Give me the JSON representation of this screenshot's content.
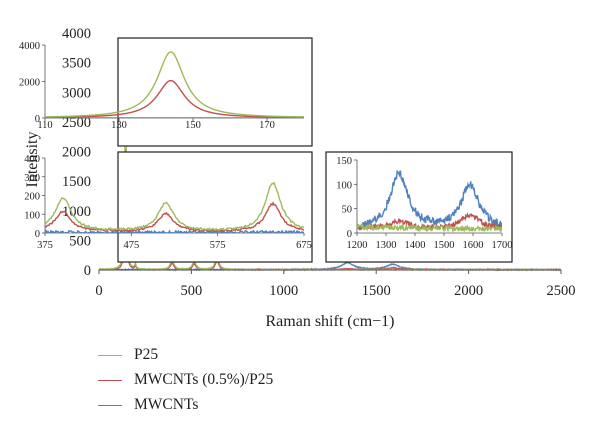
{
  "chart_data": {
    "type": "line",
    "xlabel": "Raman shift (cm−1)",
    "ylabel": "Intensity",
    "xlim": [
      0,
      2500
    ],
    "ylim": [
      0,
      4000
    ],
    "x_ticks": [
      "0",
      "500",
      "1000",
      "1500",
      "2000",
      "2500"
    ],
    "y_ticks": [
      "0",
      "500",
      "1000",
      "1500",
      "2000",
      "2500",
      "3000",
      "3500",
      "4000"
    ],
    "grid": false,
    "legend_position": "bottom-left",
    "series": [
      {
        "name": "P25",
        "color": "#9bbb59",
        "peaks": [
          [
            144,
            3620
          ],
          [
            197,
            90
          ],
          [
            396,
            175
          ],
          [
            515,
            150
          ],
          [
            639,
            260
          ]
        ]
      },
      {
        "name": "MWCNTs (0.5%)/P25",
        "color": "#c0504d",
        "peaks": [
          [
            144,
            2050
          ],
          [
            197,
            55
          ],
          [
            396,
            105
          ],
          [
            515,
            95
          ],
          [
            639,
            150
          ],
          [
            1345,
            15
          ],
          [
            1590,
            30
          ]
        ]
      },
      {
        "name": "MWCNTs",
        "color": "#4f81bd",
        "peaks": [
          [
            1345,
            115
          ],
          [
            1590,
            90
          ]
        ]
      }
    ],
    "insets": [
      {
        "xlim": [
          110,
          180
        ],
        "ylim": [
          0,
          4000
        ],
        "x_ticks": [
          "110",
          "130",
          "150",
          "170"
        ],
        "y_ticks": [
          "0",
          "2000",
          "4000"
        ]
      },
      {
        "xlim": [
          375,
          675
        ],
        "ylim": [
          0,
          400
        ],
        "x_ticks": [
          "375",
          "475",
          "575",
          "675"
        ],
        "y_ticks": [
          "0",
          "100",
          "200",
          "300",
          "400"
        ]
      },
      {
        "xlim": [
          1200,
          1700
        ],
        "ylim": [
          0,
          150
        ],
        "x_ticks": [
          "1200",
          "1300",
          "1400",
          "1500",
          "1600",
          "1700"
        ],
        "y_ticks": [
          "0",
          "50",
          "100",
          "150"
        ]
      }
    ]
  }
}
